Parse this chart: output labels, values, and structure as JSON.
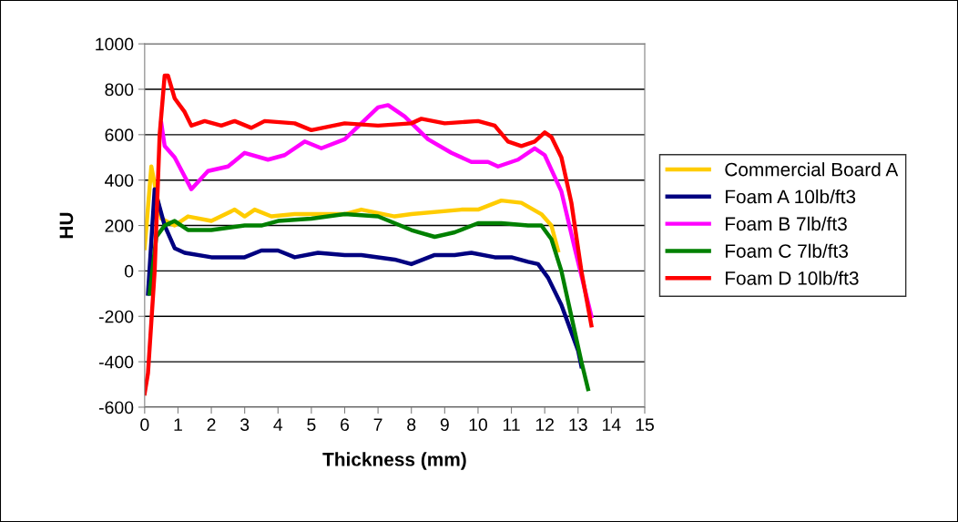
{
  "chart_data": {
    "type": "line",
    "xlabel": "Thickness (mm)",
    "ylabel": "HU",
    "xlim": [
      0,
      15
    ],
    "xticks": [
      0,
      1,
      2,
      3,
      4,
      5,
      6,
      7,
      8,
      9,
      10,
      11,
      12,
      13,
      14,
      15
    ],
    "ylim": [
      -600,
      1000
    ],
    "yticks": [
      -600,
      -400,
      -200,
      0,
      200,
      400,
      600,
      800,
      1000
    ],
    "grid": "y",
    "legend": "right",
    "marker": "none",
    "line_style": "solid",
    "series": [
      {
        "name": "Commercial Board A",
        "color": "#ffcc00",
        "x": [
          0,
          0.2,
          0.5,
          0.9,
          1.3,
          2,
          2.7,
          3,
          3.3,
          3.8,
          4.5,
          6,
          6.5,
          7.5,
          8,
          9.5,
          10,
          10.7,
          11.3,
          11.9,
          12.2,
          12.4
        ],
        "values": [
          100,
          460,
          230,
          200,
          240,
          220,
          270,
          240,
          270,
          240,
          250,
          250,
          270,
          240,
          250,
          270,
          270,
          310,
          300,
          250,
          200,
          90
        ]
      },
      {
        "name": "Foam A 10lb/ft3",
        "color": "#000080",
        "x": [
          0.1,
          0.3,
          0.6,
          0.9,
          1.2,
          2,
          3,
          3.5,
          4,
          4.5,
          5.2,
          6,
          6.5,
          7.5,
          8,
          8.7,
          9.3,
          9.8,
          10.5,
          11,
          11.5,
          11.8,
          12.1,
          12.5,
          13,
          13.1
        ],
        "values": [
          -100,
          360,
          200,
          100,
          80,
          60,
          60,
          90,
          90,
          60,
          80,
          70,
          70,
          50,
          30,
          70,
          70,
          80,
          60,
          60,
          40,
          30,
          -30,
          -150,
          -350,
          -420
        ]
      },
      {
        "name": "Foam B 7lb/ft3",
        "color": "#ff00ff",
        "x": [
          0.5,
          0.6,
          0.9,
          1.4,
          1.9,
          2.5,
          3,
          3.7,
          4.2,
          4.8,
          5.3,
          6,
          6.5,
          7,
          7.3,
          7.8,
          8.5,
          9.2,
          9.8,
          10.3,
          10.6,
          11.2,
          11.7,
          12,
          12.5,
          12.9,
          13.4
        ],
        "values": [
          650,
          550,
          500,
          360,
          440,
          460,
          520,
          490,
          510,
          570,
          540,
          580,
          650,
          720,
          730,
          680,
          580,
          520,
          480,
          480,
          460,
          490,
          540,
          510,
          350,
          100,
          -200
        ]
      },
      {
        "name": "Foam C 7lb/ft3",
        "color": "#008000",
        "x": [
          0.15,
          0.35,
          0.6,
          0.9,
          1.3,
          2,
          3,
          3.5,
          4,
          5,
          6,
          7,
          8,
          8.7,
          9.3,
          10,
          10.7,
          11.5,
          11.9,
          12.2,
          12.5,
          12.8,
          13.1,
          13.3
        ],
        "values": [
          -100,
          150,
          200,
          220,
          180,
          180,
          200,
          200,
          220,
          230,
          250,
          240,
          180,
          150,
          170,
          210,
          210,
          200,
          200,
          140,
          0,
          -200,
          -400,
          -520
        ]
      },
      {
        "name": "Foam D 10lb/ft3",
        "color": "#ff0000",
        "x": [
          0,
          0.1,
          0.3,
          0.45,
          0.6,
          0.7,
          0.9,
          1.2,
          1.4,
          1.8,
          2.3,
          2.7,
          3.2,
          3.6,
          4.5,
          5,
          6,
          7,
          8,
          8.3,
          9,
          10,
          10.5,
          10.9,
          11.3,
          11.7,
          12,
          12.2,
          12.5,
          12.8,
          13.1,
          13.4
        ],
        "values": [
          -540,
          -450,
          0,
          600,
          860,
          860,
          760,
          700,
          640,
          660,
          640,
          660,
          630,
          660,
          650,
          620,
          650,
          640,
          650,
          670,
          650,
          660,
          640,
          570,
          550,
          570,
          610,
          590,
          500,
          300,
          0,
          -240
        ]
      }
    ]
  }
}
